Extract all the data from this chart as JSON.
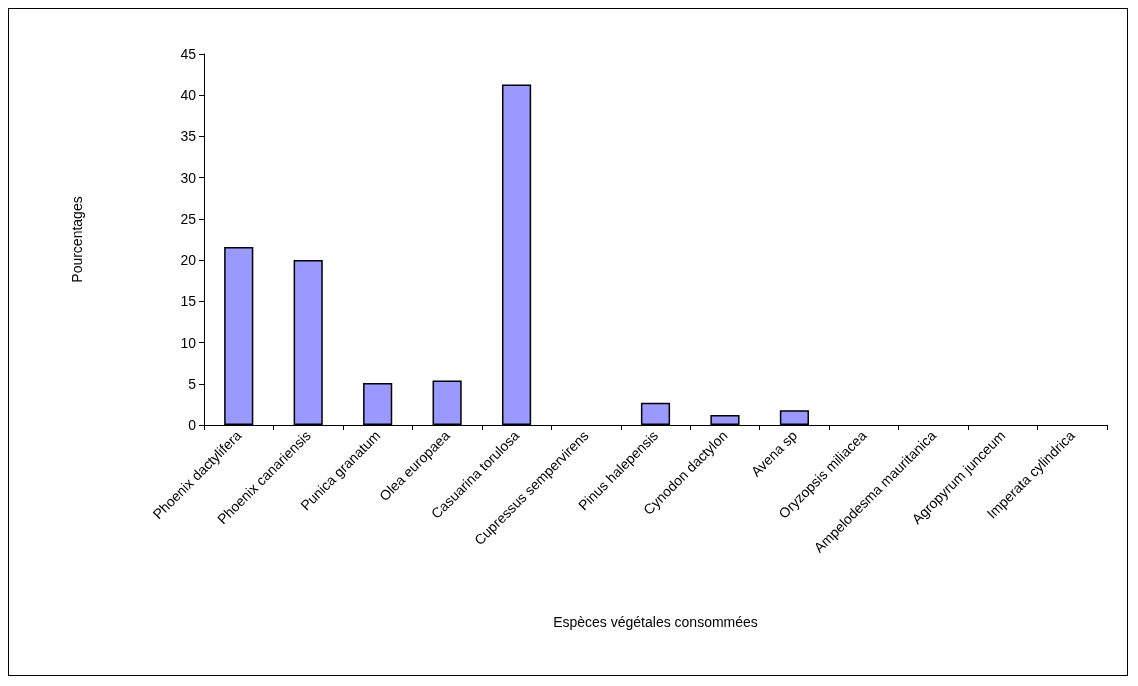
{
  "chart_data": {
    "type": "bar",
    "xlabel": "Espèces végétales consommées",
    "ylabel": "Pourcentages",
    "categories": [
      "Phoenix dactylifera",
      "Phoenix canariensis",
      "Punica granatum",
      "Olea europaea",
      "Casuarina torulosa",
      "Cupressus sempervirens",
      "Pinus halepensis",
      "Cynodon dactylon",
      "Avena sp",
      "Oryzopsis miliacea",
      "Ampelodesma mauritanica",
      "Agropyrum junceum",
      "Imperata cylindrica"
    ],
    "values": [
      21.6,
      20.0,
      5.1,
      5.4,
      41.3,
      0,
      2.7,
      1.2,
      1.8,
      0,
      0,
      0,
      0
    ],
    "color": "#9999ff",
    "ylim": [
      0,
      45
    ],
    "yticks": [
      0,
      5,
      10,
      15,
      20,
      25,
      30,
      35,
      40,
      45
    ],
    "grid": false
  }
}
